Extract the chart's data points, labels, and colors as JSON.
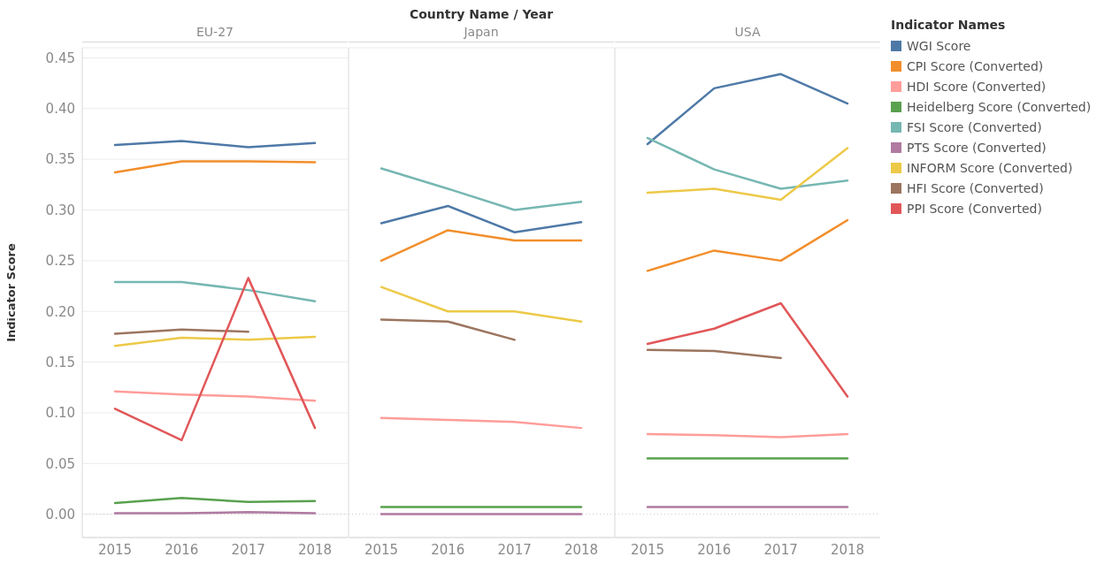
{
  "chart_data": [
    {
      "type": "line",
      "subtitle": "EU-27",
      "ylabel": "Indicator Score",
      "categories": [
        "2015",
        "2016",
        "2017",
        "2018"
      ],
      "ylim": [
        -0.023,
        0.46
      ],
      "yticks": [
        {
          "value": 0,
          "label": "0.00"
        },
        0.05,
        {
          "value": 0.1,
          "label": "0.10"
        },
        0.15,
        {
          "value": 0.2,
          "label": "0.20"
        },
        0.25,
        {
          "value": 0.3,
          "label": "0.30"
        },
        0.35,
        {
          "value": 0.4,
          "label": "0.40"
        },
        0.45
      ],
      "grid": "y",
      "legend": false,
      "marker": "none",
      "ref_lines": [
        {
          "axis": "y",
          "value": 0,
          "line_style": "dotted",
          "color": "#c8c8c8"
        }
      ],
      "series": [
        {
          "color": "#4e79a7",
          "values": [
            0.364,
            0.368,
            0.362,
            0.366
          ]
        },
        {
          "color": "#f28e2b",
          "values": [
            0.337,
            0.348,
            0.348,
            0.347
          ]
        },
        {
          "color": "#ff9d9a",
          "values": [
            0.121,
            0.118,
            0.116,
            0.112
          ]
        },
        {
          "color": "#59a14f",
          "values": [
            0.011,
            0.016,
            0.012,
            0.013
          ]
        },
        {
          "color": "#76b7b2",
          "values": [
            0.229,
            0.229,
            0.221,
            0.21
          ]
        },
        {
          "color": "#b07aa1",
          "values": [
            0.001,
            0.001,
            0.002,
            0.001
          ]
        },
        {
          "color": "#edc948",
          "values": [
            0.166,
            0.174,
            0.172,
            0.175
          ]
        },
        {
          "color": "#9c755f",
          "values": [
            0.178,
            0.182,
            0.18,
            null
          ]
        },
        {
          "color": "#e15759",
          "values": [
            0.104,
            0.073,
            0.233,
            0.085
          ]
        }
      ]
    },
    {
      "type": "line",
      "title": "Country Name / Year",
      "subtitle": "Japan",
      "categories": [
        "2015",
        "2016",
        "2017",
        "2018"
      ],
      "ylim": [
        -0.023,
        0.46
      ],
      "yticks": [
        {
          "value": 0,
          "label": null
        },
        {
          "value": 0.05,
          "label": null
        },
        {
          "value": 0.1,
          "label": null
        },
        {
          "value": 0.15,
          "label": null
        },
        {
          "value": 0.2,
          "label": null
        },
        {
          "value": 0.25,
          "label": null
        },
        {
          "value": 0.3,
          "label": null
        },
        {
          "value": 0.35,
          "label": null
        },
        {
          "value": 0.4,
          "label": null
        },
        {
          "value": 0.45,
          "label": null
        }
      ],
      "tick_labels": "x",
      "grid": "y",
      "legend": false,
      "marker": "none",
      "ref_lines": [
        {
          "axis": "y",
          "value": 0,
          "line_style": "dotted",
          "color": "#c8c8c8"
        }
      ],
      "series": [
        {
          "color": "#4e79a7",
          "values": [
            0.287,
            0.304,
            0.278,
            0.288
          ]
        },
        {
          "color": "#f28e2b",
          "values": [
            0.25,
            0.28,
            0.27,
            0.27
          ]
        },
        {
          "color": "#ff9d9a",
          "values": [
            0.095,
            0.093,
            0.091,
            0.085
          ]
        },
        {
          "color": "#59a14f",
          "values": [
            0.007,
            0.007,
            0.007,
            0.007
          ]
        },
        {
          "color": "#76b7b2",
          "values": [
            0.341,
            0.321,
            0.3,
            0.308
          ]
        },
        {
          "color": "#b07aa1",
          "values": [
            0,
            0,
            0,
            0
          ]
        },
        {
          "color": "#edc948",
          "values": [
            0.224,
            0.2,
            0.2,
            0.19
          ]
        },
        {
          "color": "#9c755f",
          "values": [
            0.192,
            0.19,
            0.172,
            null
          ]
        }
      ]
    },
    {
      "type": "line",
      "subtitle": "USA",
      "legend_title": "Indicator Names",
      "categories": [
        "2015",
        "2016",
        "2017",
        "2018"
      ],
      "ylim": [
        -0.023,
        0.46
      ],
      "yticks": [
        {
          "value": 0,
          "label": null
        },
        {
          "value": 0.05,
          "label": null
        },
        {
          "value": 0.1,
          "label": null
        },
        {
          "value": 0.15,
          "label": null
        },
        {
          "value": 0.2,
          "label": null
        },
        {
          "value": 0.25,
          "label": null
        },
        {
          "value": 0.3,
          "label": null
        },
        {
          "value": 0.35,
          "label": null
        },
        {
          "value": 0.4,
          "label": null
        },
        {
          "value": 0.45,
          "label": null
        }
      ],
      "tick_labels": "x",
      "grid": "y",
      "legend": "right",
      "marker": "none",
      "ref_lines": [
        {
          "axis": "y",
          "value": 0,
          "line_style": "dotted",
          "color": "#c8c8c8"
        }
      ],
      "series": [
        {
          "name": "WGI Score",
          "color": "#4e79a7",
          "values": [
            0.365,
            0.42,
            0.434,
            0.405
          ]
        },
        {
          "name": "CPI Score (Converted)",
          "color": "#f28e2b",
          "values": [
            0.24,
            0.26,
            0.25,
            0.29
          ]
        },
        {
          "name": "HDI Score (Converted)",
          "color": "#ff9d9a",
          "values": [
            0.079,
            0.078,
            0.076,
            0.079
          ]
        },
        {
          "name": "Heidelberg Score (Converted)",
          "color": "#59a14f",
          "values": [
            0.055,
            0.055,
            0.055,
            0.055
          ]
        },
        {
          "name": "FSI Score (Converted)",
          "color": "#76b7b2",
          "values": [
            0.371,
            0.34,
            0.321,
            0.329
          ]
        },
        {
          "name": "PTS Score (Converted)",
          "color": "#b07aa1",
          "values": [
            0.007,
            0.007,
            0.007,
            0.007
          ]
        },
        {
          "name": "INFORM Score (Converted)",
          "color": "#edc948",
          "values": [
            0.317,
            0.321,
            0.31,
            0.361
          ]
        },
        {
          "name": "HFI Score (Converted)",
          "color": "#9c755f",
          "values": [
            0.162,
            0.161,
            0.154,
            null
          ]
        },
        {
          "name": "PPI Score (Converted)",
          "color": "#e15759",
          "values": [
            0.168,
            0.183,
            0.208,
            0.116
          ]
        }
      ]
    }
  ]
}
